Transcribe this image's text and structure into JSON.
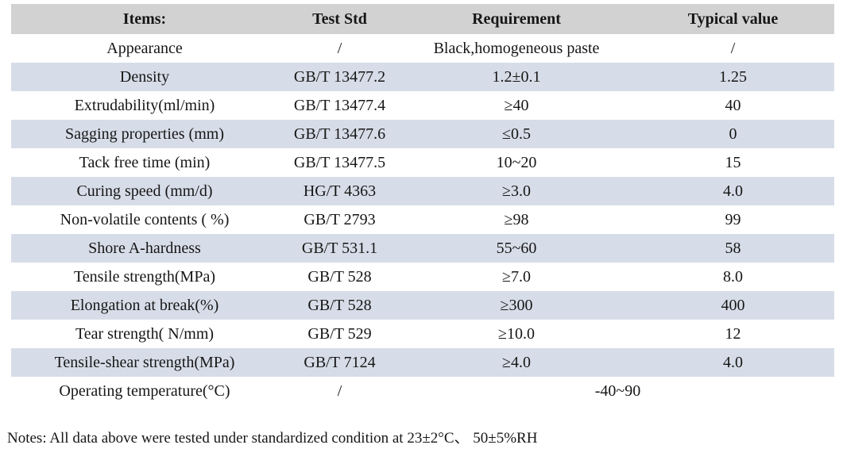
{
  "table": {
    "headers": {
      "items": "Items:",
      "test_std": "Test Std",
      "requirement": "Requirement",
      "typical_value": "Typical value"
    },
    "rows": [
      {
        "item": "Appearance",
        "std": "/",
        "req": "Black,homogeneous paste",
        "typ": "/"
      },
      {
        "item": "Density",
        "std": "GB/T 13477.2",
        "req": "1.2±0.1",
        "typ": "1.25"
      },
      {
        "item": "Extrudability(ml/min)",
        "std": "GB/T 13477.4",
        "req": "≥40",
        "typ": "40"
      },
      {
        "item": "Sagging properties (mm)",
        "std": "GB/T 13477.6",
        "req": "≤0.5",
        "typ": "0"
      },
      {
        "item": "Tack free time (min)",
        "std": "GB/T 13477.5",
        "req": "10~20",
        "typ": "15"
      },
      {
        "item": "Curing speed (mm/d)",
        "std": "HG/T 4363",
        "req": "≥3.0",
        "typ": "4.0"
      },
      {
        "item": "Non-volatile contents ( %)",
        "std": "GB/T 2793",
        "req": "≥98",
        "typ": "99"
      },
      {
        "item": "Shore A-hardness",
        "std": "GB/T 531.1",
        "req": "55~60",
        "typ": "58"
      },
      {
        "item": "Tensile strength(MPa)",
        "std": "GB/T 528",
        "req": "≥7.0",
        "typ": "8.0"
      },
      {
        "item": "Elongation at break(%)",
        "std": "GB/T 528",
        "req": "≥300",
        "typ": "400"
      },
      {
        "item": "Tear strength( N/mm)",
        "std": "GB/T 529",
        "req": "≥10.0",
        "typ": "12"
      },
      {
        "item": "Tensile-shear strength(MPa)",
        "std": "GB/T 7124",
        "req": "≥4.0",
        "typ": "4.0"
      },
      {
        "item": "Operating temperature(°C)",
        "std": "/",
        "req": "-40~90"
      }
    ]
  },
  "notes": "Notes: All data above were tested under standardized condition at 23±2°C、 50±5%RH",
  "colors": {
    "header_bg": "#d2d2d2",
    "stripe_bg": "#d7dde8",
    "text": "#161616"
  }
}
